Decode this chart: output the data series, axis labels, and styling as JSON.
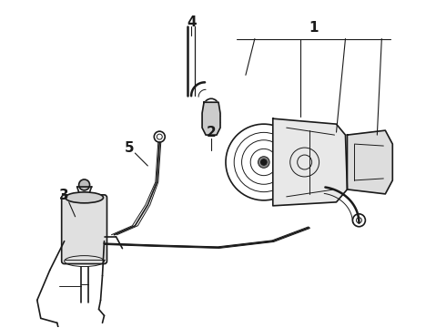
{
  "background_color": "#ffffff",
  "line_color": "#1a1a1a",
  "label_color": "#000000",
  "figsize": [
    4.9,
    3.6
  ],
  "dpi": 100,
  "lw_main": 1.2,
  "lw_thin": 0.7,
  "lw_hose": 1.8
}
